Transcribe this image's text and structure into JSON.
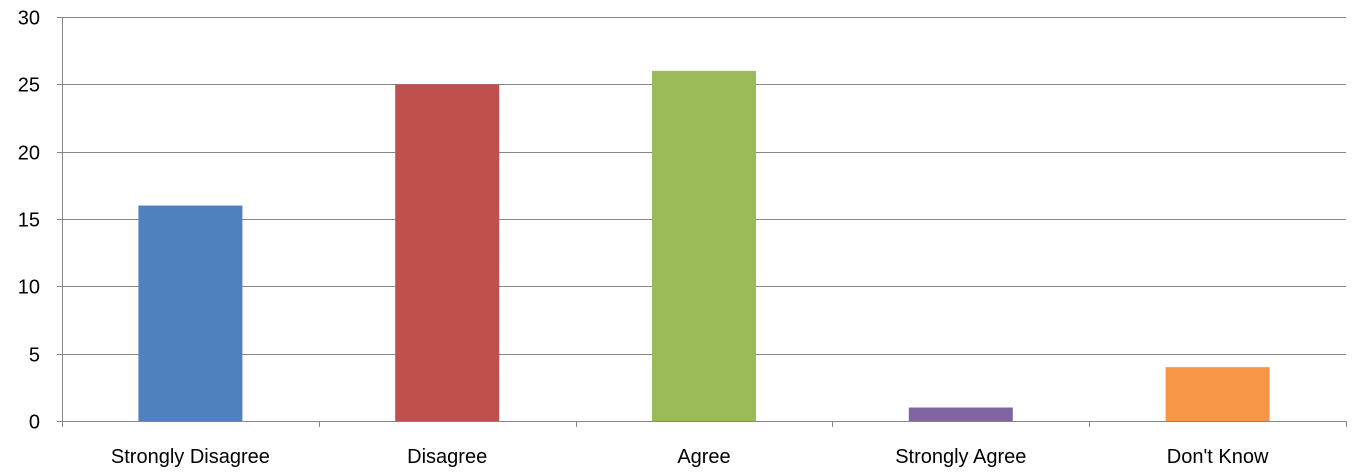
{
  "chart_data": {
    "type": "bar",
    "categories": [
      "Strongly Disagree",
      "Disagree",
      "Agree",
      "Strongly Agree",
      "Don't Know"
    ],
    "values": [
      16,
      25,
      26,
      1,
      4
    ],
    "colors": [
      "#4F81BD",
      "#C0504D",
      "#9BBB59",
      "#8064A2",
      "#F79646"
    ],
    "ylim": [
      0,
      30
    ],
    "yticks": [
      0,
      5,
      10,
      15,
      20,
      25,
      30
    ],
    "grid": true,
    "legend": "none",
    "title": "",
    "xlabel": "",
    "ylabel": ""
  }
}
